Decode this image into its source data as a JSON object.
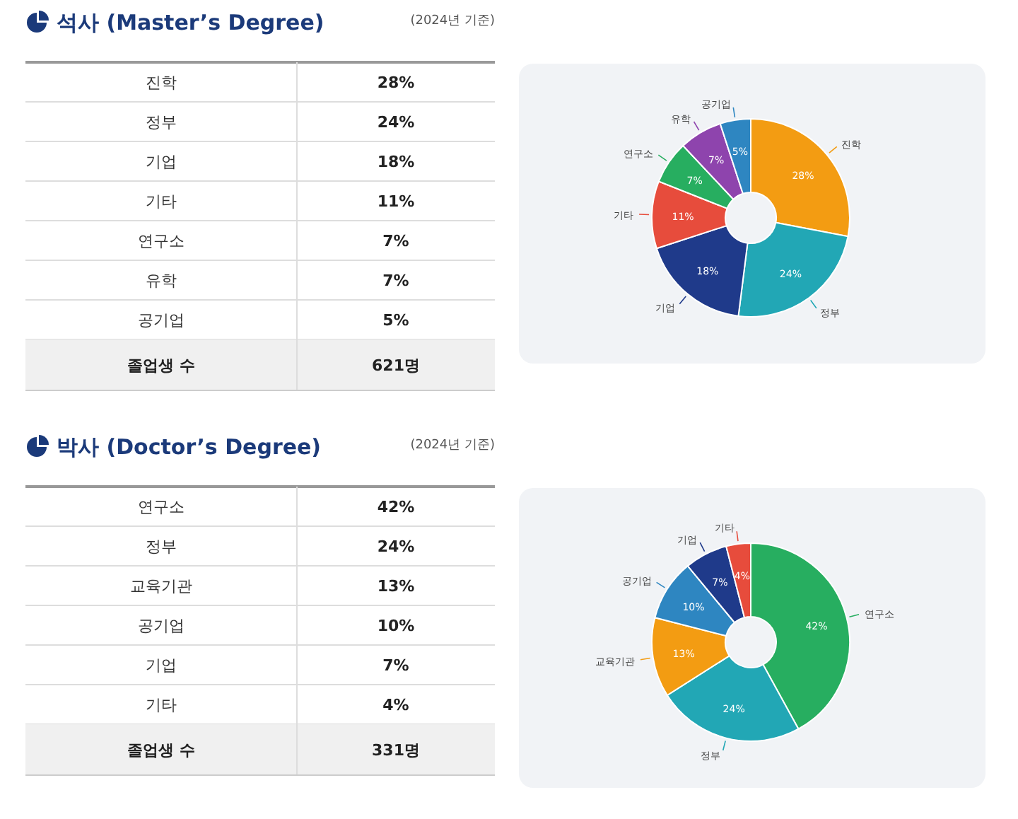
{
  "chart_data": [
    {
      "type": "donut",
      "title": "석사 (Master’s Degree)",
      "subtitle": "(2024년 기준)",
      "categories": [
        "진학",
        "정부",
        "기업",
        "기타",
        "연구소",
        "유학",
        "공기업"
      ],
      "values": [
        28,
        24,
        18,
        11,
        7,
        7,
        5
      ],
      "colors": [
        "#f39c12",
        "#22a7b5",
        "#1f3a8a",
        "#e74c3c",
        "#27ae60",
        "#8e44ad",
        "#2e86c1"
      ],
      "value_labels": [
        "28%",
        "24%",
        "18%",
        "11%",
        "7%",
        "7%",
        "5%"
      ],
      "annotations": [
        "졸업생 수",
        "621명"
      ]
    },
    {
      "type": "donut",
      "title": "박사 (Doctor’s Degree)",
      "subtitle": "(2024년 기준)",
      "categories": [
        "연구소",
        "정부",
        "교육기관",
        "공기업",
        "기업",
        "기타"
      ],
      "values": [
        42,
        24,
        13,
        10,
        7,
        4
      ],
      "colors": [
        "#27ae60",
        "#22a7b5",
        "#f39c12",
        "#2e86c1",
        "#1f3a8a",
        "#e74c3c"
      ],
      "value_labels": [
        "42%",
        "24%",
        "13%",
        "10%",
        "7%",
        "4%"
      ],
      "annotations": [
        "졸업생 수",
        "331명"
      ]
    }
  ]
}
